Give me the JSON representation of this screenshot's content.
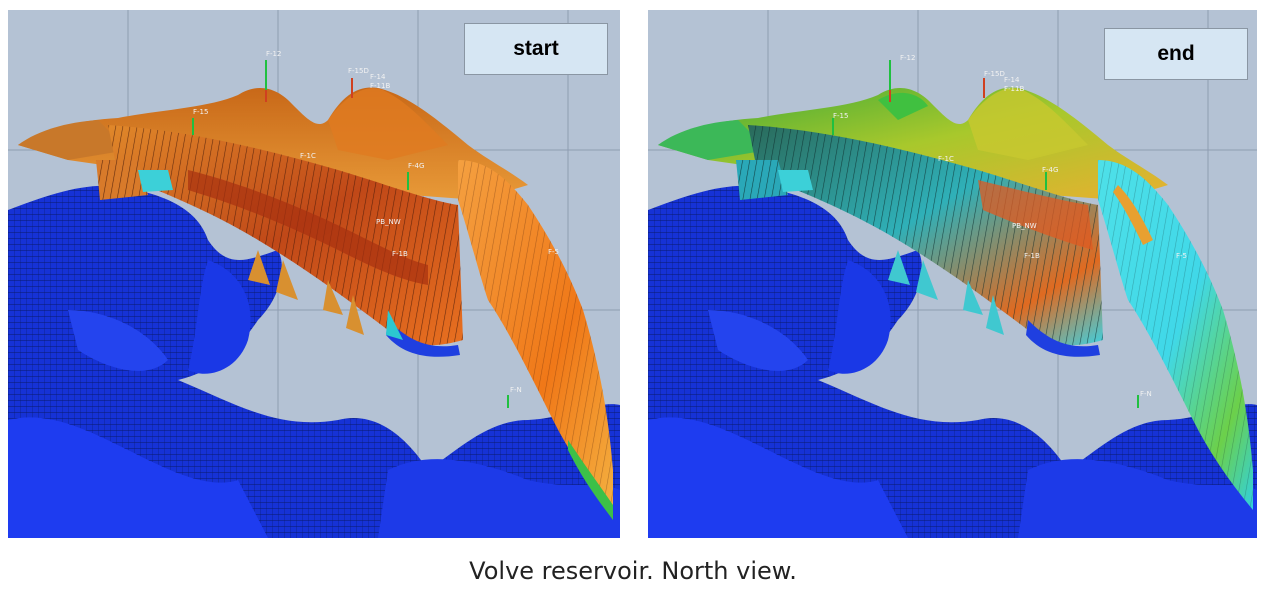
{
  "panels": [
    {
      "label": "start",
      "scheme": "saturation-start"
    },
    {
      "label": "end",
      "scheme": "saturation-end"
    }
  ],
  "wells": [
    "F-12",
    "F-15D",
    "F-14",
    "F-11B",
    "F-15",
    "F-1C",
    "F-4G",
    "PB_NW",
    "F-1B",
    "F-5",
    "F-N"
  ],
  "caption": "Volve reservoir. North view.",
  "colors": {
    "background": "#b4c2d4",
    "grid": "#8e9db1",
    "deep_grid_blue": "#1430d8",
    "start_hot": "#f07818",
    "start_warm": "#e8a03a",
    "end_cyan": "#3ed8e8",
    "end_green": "#6ccc3c"
  }
}
